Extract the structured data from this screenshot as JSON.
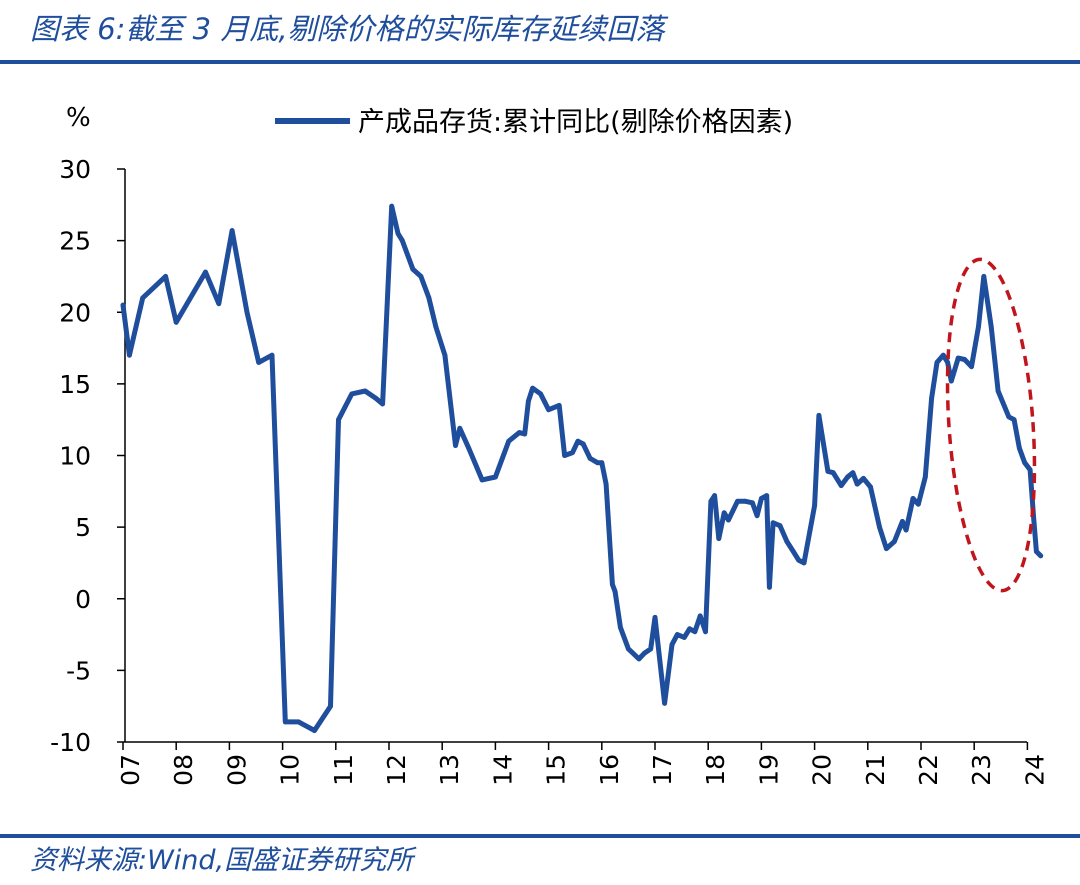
{
  "figure": {
    "title": "图表 6:截至 3 月底,剔除价格的实际库存延续回落",
    "source": "资料来源:Wind,国盛证券研究所"
  },
  "chart_data": {
    "type": "line",
    "y_unit_label": "%",
    "ylim": [
      -10,
      30
    ],
    "y_ticks": [
      30,
      25,
      20,
      15,
      10,
      5,
      0,
      -5,
      -10
    ],
    "x_ticks": [
      "07",
      "08",
      "09",
      "10",
      "11",
      "12",
      "13",
      "14",
      "15",
      "16",
      "17",
      "18",
      "19",
      "20",
      "21",
      "22",
      "23",
      "24"
    ],
    "xlim": [
      2007.0,
      2024.2
    ],
    "grid": false,
    "legend_position": "top-center",
    "colors": {
      "series": "#1f4e9c",
      "highlight": "#c0151c",
      "rule": "#1f4e9c"
    },
    "series": [
      {
        "name": "产成品存货:累计同比(剔除价格因素)",
        "points": [
          [
            2007.0,
            20.5
          ],
          [
            2007.12,
            17.0
          ],
          [
            2007.37,
            21.0
          ],
          [
            2007.8,
            22.5
          ],
          [
            2008.0,
            19.3
          ],
          [
            2008.55,
            22.8
          ],
          [
            2008.8,
            20.6
          ],
          [
            2009.05,
            25.7
          ],
          [
            2009.33,
            20.0
          ],
          [
            2009.55,
            16.5
          ],
          [
            2009.8,
            17.0
          ],
          [
            2010.05,
            -8.6
          ],
          [
            2010.3,
            -8.6
          ],
          [
            2010.6,
            -9.2
          ],
          [
            2010.9,
            -7.5
          ],
          [
            2011.05,
            12.5
          ],
          [
            2011.3,
            14.3
          ],
          [
            2011.55,
            14.5
          ],
          [
            2011.75,
            14.0
          ],
          [
            2011.88,
            13.6
          ],
          [
            2012.05,
            27.4
          ],
          [
            2012.17,
            25.5
          ],
          [
            2012.25,
            25.0
          ],
          [
            2012.45,
            23.0
          ],
          [
            2012.6,
            22.5
          ],
          [
            2012.75,
            21.0
          ],
          [
            2012.88,
            19.0
          ],
          [
            2013.05,
            17.0
          ],
          [
            2013.25,
            10.7
          ],
          [
            2013.33,
            11.9
          ],
          [
            2013.5,
            10.5
          ],
          [
            2013.75,
            8.3
          ],
          [
            2014.0,
            8.5
          ],
          [
            2014.25,
            11.0
          ],
          [
            2014.45,
            11.6
          ],
          [
            2014.55,
            11.5
          ],
          [
            2014.62,
            13.8
          ],
          [
            2014.7,
            14.7
          ],
          [
            2014.85,
            14.3
          ],
          [
            2015.0,
            13.2
          ],
          [
            2015.2,
            13.5
          ],
          [
            2015.3,
            10.0
          ],
          [
            2015.45,
            10.2
          ],
          [
            2015.55,
            11.0
          ],
          [
            2015.65,
            10.8
          ],
          [
            2015.78,
            9.8
          ],
          [
            2015.92,
            9.5
          ],
          [
            2016.0,
            9.5
          ],
          [
            2016.08,
            8.0
          ],
          [
            2016.2,
            1.0
          ],
          [
            2016.25,
            0.5
          ],
          [
            2016.35,
            -2.0
          ],
          [
            2016.5,
            -3.5
          ],
          [
            2016.7,
            -4.2
          ],
          [
            2016.8,
            -3.8
          ],
          [
            2016.92,
            -3.5
          ],
          [
            2017.0,
            -1.3
          ],
          [
            2017.18,
            -7.3
          ],
          [
            2017.32,
            -3.2
          ],
          [
            2017.42,
            -2.5
          ],
          [
            2017.55,
            -2.7
          ],
          [
            2017.65,
            -2.1
          ],
          [
            2017.75,
            -2.3
          ],
          [
            2017.85,
            -1.2
          ],
          [
            2017.95,
            -2.3
          ],
          [
            2018.05,
            6.8
          ],
          [
            2018.12,
            7.2
          ],
          [
            2018.2,
            4.2
          ],
          [
            2018.3,
            6.0
          ],
          [
            2018.38,
            5.5
          ],
          [
            2018.55,
            6.8
          ],
          [
            2018.7,
            6.8
          ],
          [
            2018.83,
            6.7
          ],
          [
            2018.92,
            5.8
          ],
          [
            2019.0,
            7.0
          ],
          [
            2019.1,
            7.2
          ],
          [
            2019.15,
            0.8
          ],
          [
            2019.22,
            5.3
          ],
          [
            2019.35,
            5.1
          ],
          [
            2019.48,
            4.0
          ],
          [
            2019.6,
            3.3
          ],
          [
            2019.7,
            2.7
          ],
          [
            2019.8,
            2.5
          ],
          [
            2020.0,
            6.5
          ],
          [
            2020.08,
            12.8
          ],
          [
            2020.25,
            8.9
          ],
          [
            2020.35,
            8.8
          ],
          [
            2020.5,
            7.9
          ],
          [
            2020.62,
            8.5
          ],
          [
            2020.72,
            8.8
          ],
          [
            2020.8,
            8.0
          ],
          [
            2020.92,
            8.4
          ],
          [
            2021.05,
            7.8
          ],
          [
            2021.22,
            5.0
          ],
          [
            2021.35,
            3.5
          ],
          [
            2021.5,
            4.0
          ],
          [
            2021.65,
            5.4
          ],
          [
            2021.72,
            4.8
          ],
          [
            2021.85,
            7.0
          ],
          [
            2021.95,
            6.6
          ],
          [
            2022.08,
            8.5
          ],
          [
            2022.2,
            14.0
          ],
          [
            2022.3,
            16.5
          ],
          [
            2022.42,
            17.0
          ],
          [
            2022.5,
            16.5
          ],
          [
            2022.57,
            15.2
          ],
          [
            2022.7,
            16.8
          ],
          [
            2022.82,
            16.7
          ],
          [
            2022.95,
            16.2
          ],
          [
            2023.08,
            19.0
          ],
          [
            2023.18,
            22.5
          ],
          [
            2023.32,
            19.0
          ],
          [
            2023.45,
            14.5
          ],
          [
            2023.65,
            12.7
          ],
          [
            2023.75,
            12.5
          ],
          [
            2023.85,
            10.5
          ],
          [
            2023.95,
            9.5
          ],
          [
            2024.05,
            9.0
          ],
          [
            2024.12,
            5.5
          ],
          [
            2024.17,
            3.3
          ],
          [
            2024.25,
            3.0
          ]
        ]
      }
    ],
    "annotations": [
      {
        "type": "ellipse",
        "style": "dashed",
        "color": "#c0151c",
        "around": "2023-2024 decline"
      }
    ]
  }
}
